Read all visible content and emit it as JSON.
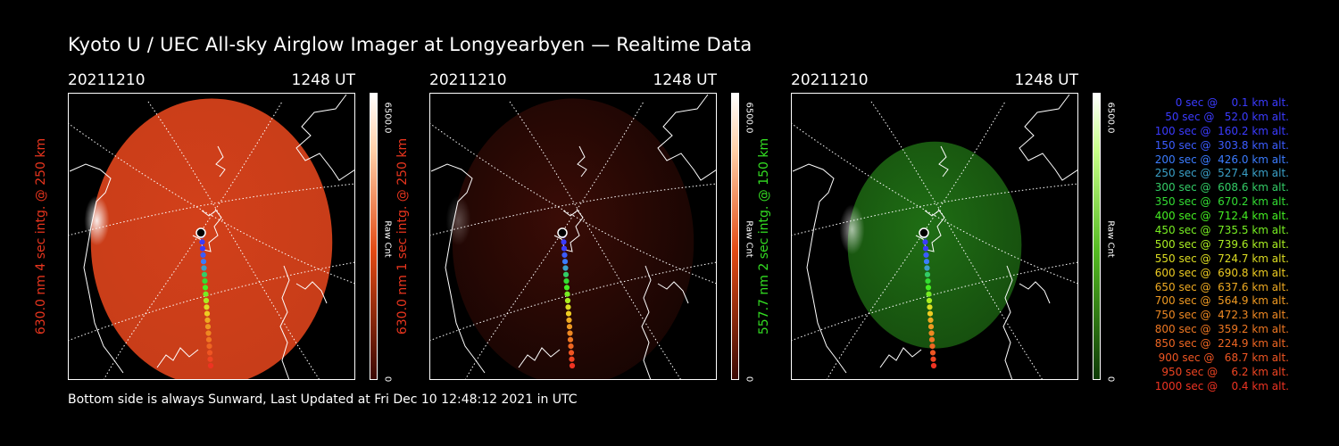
{
  "title": "Kyoto U / UEC All-sky Airglow Imager at Longyearbyen — Realtime Data",
  "footer": "Bottom side is always Sunward, Last Updated at Fri Dec 10 12:48:12 2021 in UTC",
  "panels": [
    {
      "date": "20211210",
      "time": "1248 UT",
      "ylabel": "630.0 nm 4 sec intg. @ 250 km",
      "label_color": "#e8351e",
      "cbar_max": "6500.0",
      "cbar_min": "0",
      "cbar_unit": "Raw Cnt",
      "tint": "#d2401a",
      "brightness": 1.0,
      "radius": 0.9
    },
    {
      "date": "20211210",
      "time": "1248 UT",
      "ylabel": "630.0 nm 1 sec intg. @ 250 km",
      "label_color": "#e8351e",
      "cbar_max": "6500.0",
      "cbar_min": "0",
      "cbar_unit": "Raw Cnt",
      "tint": "#3a0c06",
      "brightness": 0.3,
      "radius": 0.9
    },
    {
      "date": "20211210",
      "time": "1248 UT",
      "ylabel": "557.7 nm 2 sec intg. @ 150 km",
      "label_color": "#33dd22",
      "cbar_max": "6500.0",
      "cbar_min": "0",
      "cbar_unit": "Raw Cnt",
      "tint": "#1f6e14",
      "brightness": 0.7,
      "radius": 0.6
    }
  ],
  "chart_data": {
    "type": "scatter",
    "title": "Kyoto U / UEC All-sky Airglow Imager at Longyearbyen — Realtime Data",
    "series": [
      {
        "name": "trajectory",
        "x": [
          0,
          50,
          100,
          150,
          200,
          250,
          300,
          350,
          400,
          450,
          500,
          550,
          600,
          650,
          700,
          750,
          800,
          850,
          900,
          950,
          1000
        ],
        "y": [
          0.1,
          52.0,
          160.2,
          303.8,
          426.0,
          527.4,
          608.6,
          670.2,
          712.4,
          735.5,
          739.6,
          724.7,
          690.8,
          637.6,
          564.9,
          472.3,
          359.2,
          224.9,
          68.7,
          6.2,
          0.4
        ]
      }
    ],
    "xlabel": "sec",
    "ylabel": "km alt.",
    "colorbar": {
      "min": 0,
      "max": 6500.0,
      "unit": "Raw Cnt"
    }
  },
  "legend": [
    {
      "text": "0 sec @    0.1 km alt.",
      "color": "#3b3bff"
    },
    {
      "text": "50 sec @   52.0 km alt.",
      "color": "#3b3bff"
    },
    {
      "text": "100 sec @  160.2 km alt.",
      "color": "#3b3bff"
    },
    {
      "text": "150 sec @  303.8 km alt.",
      "color": "#3b5cff"
    },
    {
      "text": "200 sec @  426.0 km alt.",
      "color": "#3b7cff"
    },
    {
      "text": "250 sec @  527.4 km alt.",
      "color": "#3aa0c8"
    },
    {
      "text": "300 sec @  608.6 km alt.",
      "color": "#33cc66"
    },
    {
      "text": "350 sec @  670.2 km alt.",
      "color": "#33dd33"
    },
    {
      "text": "400 sec @  712.4 km alt.",
      "color": "#44ee22"
    },
    {
      "text": "450 sec @  735.5 km alt.",
      "color": "#77ee22"
    },
    {
      "text": "500 sec @  739.6 km alt.",
      "color": "#aaee22"
    },
    {
      "text": "550 sec @  724.7 km alt.",
      "color": "#dddd22"
    },
    {
      "text": "600 sec @  690.8 km alt.",
      "color": "#eecc22"
    },
    {
      "text": "650 sec @  637.6 km alt.",
      "color": "#eeaa22"
    },
    {
      "text": "700 sec @  564.9 km alt.",
      "color": "#ee9922"
    },
    {
      "text": "750 sec @  472.3 km alt.",
      "color": "#ee8822"
    },
    {
      "text": "800 sec @  359.2 km alt.",
      "color": "#ee7722"
    },
    {
      "text": "850 sec @  224.9 km alt.",
      "color": "#ee6622"
    },
    {
      "text": "900 sec @   68.7 km alt.",
      "color": "#ee5522"
    },
    {
      "text": "950 sec @    6.2 km alt.",
      "color": "#ee4422"
    },
    {
      "text": "1000 sec @    0.4 km alt.",
      "color": "#ee3322"
    }
  ]
}
